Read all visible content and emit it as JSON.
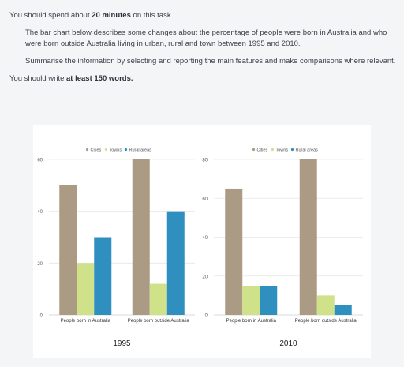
{
  "instructions": {
    "line1_pre": "You should spend about ",
    "line1_bold": "20 minutes",
    "line1_post": " on this task.",
    "task_description": "The bar chart below describes some changes about the percentage of people were born in Australia and who were born outside Australia living in urban, rural and town between 1995 and 2010.",
    "task_prompt": "Summarise the information by selecting and reporting the main features and make comparisons where relevant.",
    "write_pre": "You should write ",
    "write_bold": "at least 150 words."
  },
  "colors": {
    "Cities": "#ab9a84",
    "Towns": "#cfe28a",
    "Rural areas": "#2f8fbf"
  },
  "chart_data": [
    {
      "type": "bar",
      "title": "1995",
      "categories": [
        "People born in Australia",
        "People born outside Australia"
      ],
      "series": [
        {
          "name": "Cities",
          "values": [
            50,
            60
          ]
        },
        {
          "name": "Towns",
          "values": [
            20,
            12
          ]
        },
        {
          "name": "Rural areas",
          "values": [
            30,
            40
          ]
        }
      ],
      "ylim": [
        0,
        60
      ],
      "yticks": [
        0,
        20,
        40,
        60
      ],
      "legend": "top",
      "grid": true
    },
    {
      "type": "bar",
      "title": "2010",
      "categories": [
        "People born in Australia",
        "People born outside Australia"
      ],
      "series": [
        {
          "name": "Cities",
          "values": [
            65,
            80
          ]
        },
        {
          "name": "Towns",
          "values": [
            15,
            10
          ]
        },
        {
          "name": "Rural areas",
          "values": [
            15,
            5
          ]
        }
      ],
      "ylim": [
        0,
        80
      ],
      "yticks": [
        0,
        20,
        40,
        60,
        80
      ],
      "legend": "top",
      "grid": true
    }
  ]
}
